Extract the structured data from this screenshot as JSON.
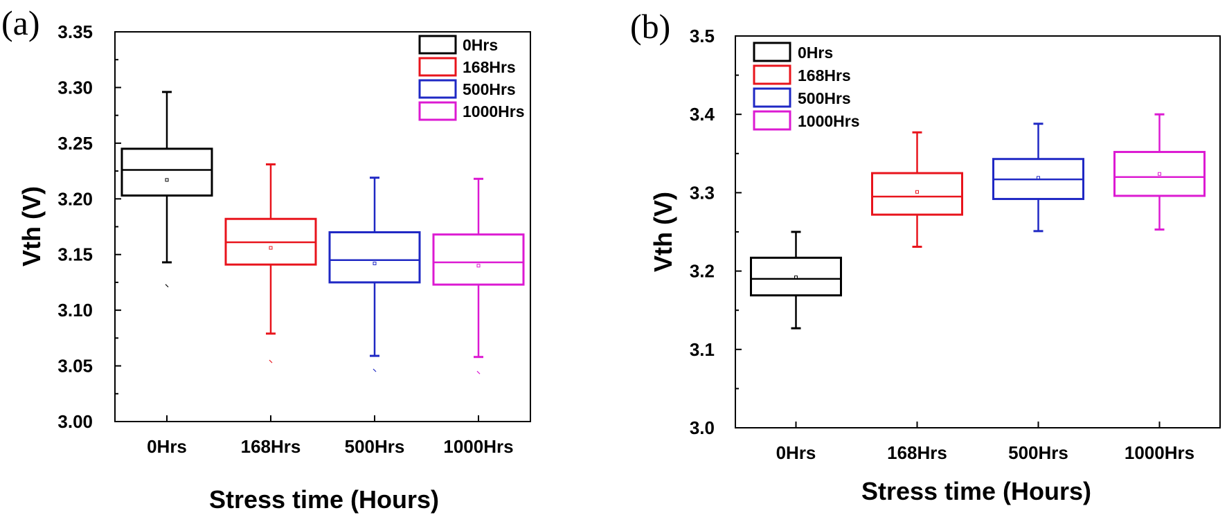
{
  "chart_data": [
    {
      "type": "box",
      "panel_label": "(a)",
      "xlabel": "Stress time (Hours)",
      "ylabel": "Vth (V)",
      "ylim": [
        3.0,
        3.35
      ],
      "yticks": [
        "3.00",
        "3.05",
        "3.10",
        "3.15",
        "3.20",
        "3.25",
        "3.30",
        "3.35"
      ],
      "yticks_values": [
        3.0,
        3.05,
        3.1,
        3.15,
        3.2,
        3.25,
        3.3,
        3.35
      ],
      "categories": [
        "0Hrs",
        "168Hrs",
        "500Hrs",
        "1000Hrs"
      ],
      "legend_position": "top-right",
      "series": [
        {
          "name": "0Hrs",
          "color": "#000000",
          "min": 3.143,
          "q1": 3.203,
          "median": 3.226,
          "q3": 3.245,
          "max": 3.296,
          "mean": 3.217,
          "outliers": [
            3.122
          ]
        },
        {
          "name": "168Hrs",
          "color": "#e8141c",
          "min": 3.079,
          "q1": 3.141,
          "median": 3.161,
          "q3": 3.182,
          "max": 3.231,
          "mean": 3.156,
          "outliers": [
            3.054
          ]
        },
        {
          "name": "500Hrs",
          "color": "#1f28c4",
          "min": 3.059,
          "q1": 3.125,
          "median": 3.145,
          "q3": 3.17,
          "max": 3.219,
          "mean": 3.142,
          "outliers": [
            3.046
          ]
        },
        {
          "name": "1000Hrs",
          "color": "#dc1ad2",
          "min": 3.058,
          "q1": 3.123,
          "median": 3.143,
          "q3": 3.168,
          "max": 3.218,
          "mean": 3.14,
          "outliers": [
            3.044
          ]
        }
      ]
    },
    {
      "type": "box",
      "panel_label": "(b)",
      "xlabel": "Stress time (Hours)",
      "ylabel": "Vth (V)",
      "ylim": [
        3.0,
        3.5
      ],
      "yticks": [
        "3.0",
        "3.1",
        "3.2",
        "3.3",
        "3.4",
        "3.5"
      ],
      "yticks_values": [
        3.0,
        3.1,
        3.2,
        3.3,
        3.4,
        3.5
      ],
      "categories": [
        "0Hrs",
        "168Hrs",
        "500Hrs",
        "1000Hrs"
      ],
      "legend_position": "top-left",
      "series": [
        {
          "name": "0Hrs",
          "color": "#000000",
          "min": 3.127,
          "q1": 3.169,
          "median": 3.19,
          "q3": 3.217,
          "max": 3.25,
          "mean": 3.192,
          "outliers": []
        },
        {
          "name": "168Hrs",
          "color": "#e8141c",
          "min": 3.231,
          "q1": 3.272,
          "median": 3.295,
          "q3": 3.325,
          "max": 3.377,
          "mean": 3.301,
          "outliers": []
        },
        {
          "name": "500Hrs",
          "color": "#1f28c4",
          "min": 3.251,
          "q1": 3.292,
          "median": 3.317,
          "q3": 3.343,
          "max": 3.388,
          "mean": 3.319,
          "outliers": []
        },
        {
          "name": "1000Hrs",
          "color": "#dc1ad2",
          "min": 3.253,
          "q1": 3.296,
          "median": 3.32,
          "q3": 3.352,
          "max": 3.4,
          "mean": 3.324,
          "outliers": []
        }
      ]
    }
  ]
}
